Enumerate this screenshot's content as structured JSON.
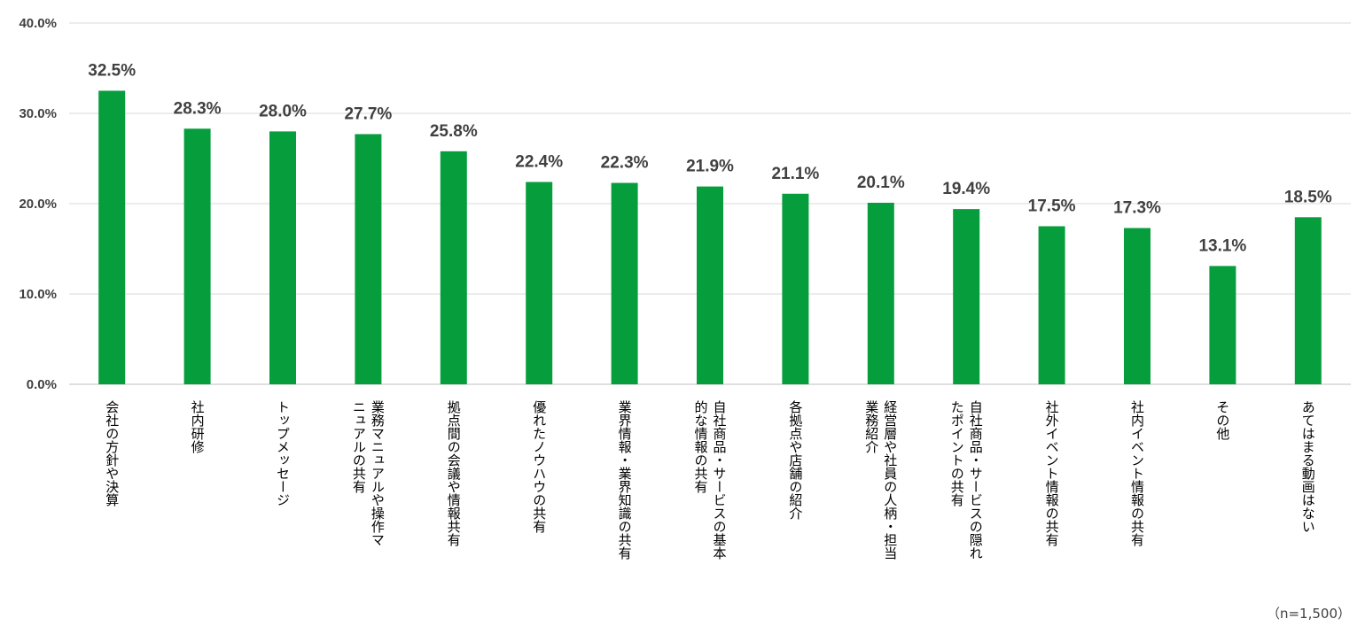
{
  "chart_data": {
    "type": "bar",
    "title": "",
    "xlabel": "",
    "ylabel": "",
    "ylim": [
      0,
      40
    ],
    "y_ticks": [
      "0.0%",
      "10.0%",
      "20.0%",
      "30.0%",
      "40.0%"
    ],
    "grid": true,
    "bar_color": "#069e3d",
    "categories": [
      [
        "会社の方針や決算"
      ],
      [
        "社内研修"
      ],
      [
        "トップメッセージ"
      ],
      [
        "業務マニュアルや操作マ",
        "ニュアルの共有"
      ],
      [
        "拠点間の会議や情報共有"
      ],
      [
        "優れたノウハウの共有"
      ],
      [
        "業界情報・業界知識の共有"
      ],
      [
        "自社商品・サービスの基本",
        "的な情報の共有"
      ],
      [
        "各拠点や店舗の紹介"
      ],
      [
        "経営層や社員の人柄・担当",
        "業務紹介"
      ],
      [
        "自社商品・サービスの隠れ",
        "たポイントの共有"
      ],
      [
        "社外イベント情報の共有"
      ],
      [
        "社内イベント情報の共有"
      ],
      [
        "その他"
      ],
      [
        "あてはまる動画はない"
      ]
    ],
    "values": [
      32.5,
      28.3,
      28.0,
      27.7,
      25.8,
      22.4,
      22.3,
      21.9,
      21.1,
      20.1,
      19.4,
      17.5,
      17.3,
      13.1,
      18.5
    ],
    "value_labels": [
      "32.5%",
      "28.3%",
      "28.0%",
      "27.7%",
      "25.8%",
      "22.4%",
      "22.3%",
      "21.9%",
      "21.1%",
      "20.1%",
      "19.4%",
      "17.5%",
      "17.3%",
      "13.1%",
      "18.5%"
    ],
    "note": "（n=1,500）"
  }
}
